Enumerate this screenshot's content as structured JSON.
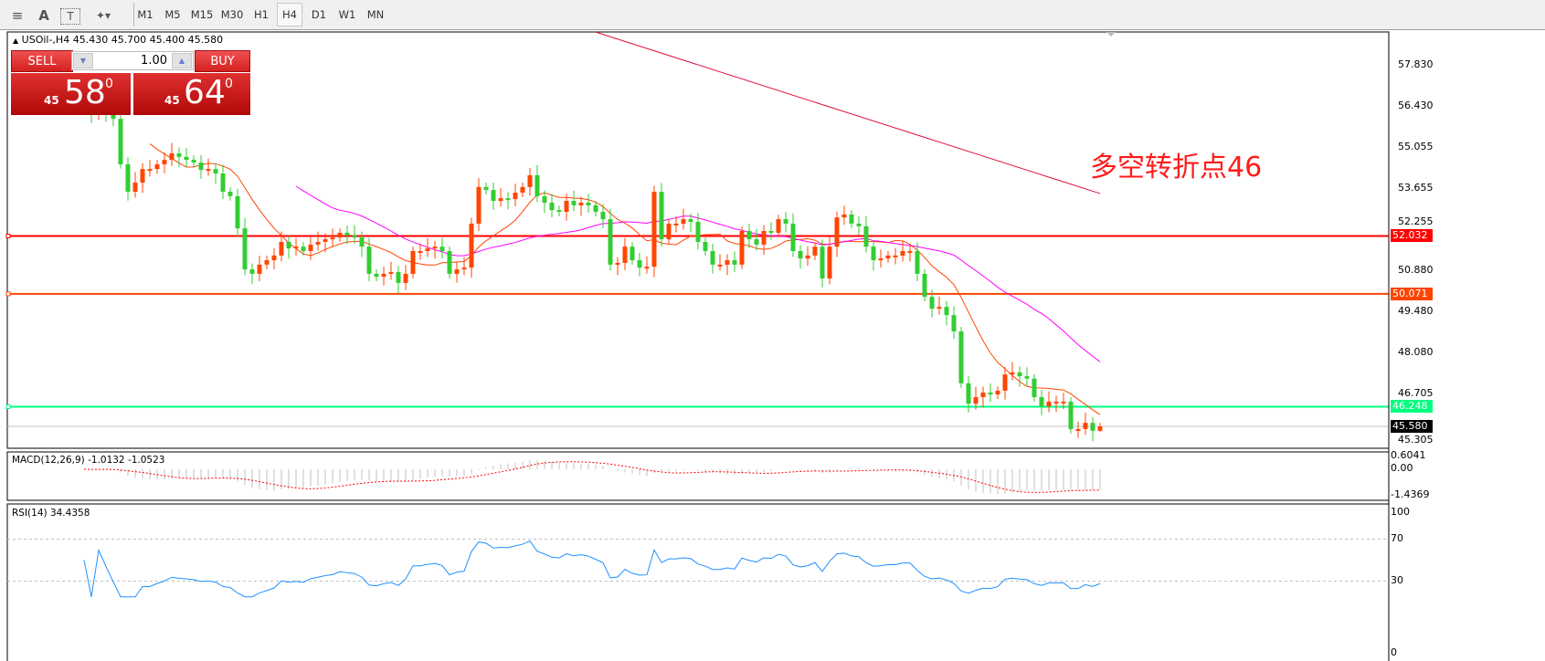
{
  "toolbar": {
    "icons": [
      "fibonacci-fan-icon",
      "text-label-icon",
      "text-box-icon",
      "arrows-dropdown-icon"
    ],
    "icon_glyphs": [
      "≡",
      "A",
      "T",
      "✦▾"
    ],
    "timeframes": [
      "M1",
      "M5",
      "M15",
      "M30",
      "H1",
      "H4",
      "D1",
      "W1",
      "MN"
    ],
    "active_timeframe": "H4"
  },
  "chart": {
    "symbol_line": "USOil-,H4",
    "ohlc_text": "45.430 45.700 45.400 45.580",
    "annotation": "多空转折点46"
  },
  "trade_panel": {
    "sell_label": "SELL",
    "buy_label": "BUY",
    "lot": "1.00",
    "sell_big": "45",
    "sell_main": "58",
    "sell_sup": "0",
    "buy_big": "45",
    "buy_main": "64",
    "buy_sup": "0"
  },
  "price_axis": [
    "57.830",
    "56.430",
    "55.055",
    "53.655",
    "52.255",
    "50.880",
    "49.480",
    "48.080",
    "46.705",
    "45.305"
  ],
  "levels": [
    {
      "value": "52.032",
      "color": "#ff0000"
    },
    {
      "value": "50.071",
      "color": "#ff4500"
    },
    {
      "value": "46.248",
      "color": "#00ff7f"
    }
  ],
  "current_price": "45.580",
  "macd": {
    "label": "MACD(12,26,9) -1.0132 -1.0523",
    "axis": [
      "0.6041",
      "0.00",
      "-1.4369"
    ]
  },
  "rsi": {
    "label": "RSI(14) 34.4358",
    "axis": [
      "100",
      "70",
      "30",
      "0"
    ]
  },
  "colors": {
    "bull": "#ff4500",
    "bear": "#32cd32",
    "ma_fast": "#ff4500",
    "ma_mid": "#ff00ff",
    "ma_slow": "#e0103a",
    "rsi": "#1e90ff",
    "macd_hist": "#c0c0c0",
    "macd_signal": "#ff0000"
  },
  "chart_data": {
    "type": "candlestick",
    "symbol": "USOil-",
    "timeframe": "H4",
    "last_bar": {
      "open": 45.43,
      "high": 45.7,
      "low": 45.4,
      "close": 45.58
    },
    "ylim": [
      45.0,
      58.9
    ],
    "closes": [
      56.31,
      56.16,
      56.38,
      56.25,
      56.0,
      54.46,
      53.53,
      53.84,
      54.3,
      54.3,
      54.46,
      54.61,
      54.83,
      54.71,
      54.61,
      54.52,
      54.27,
      54.3,
      54.15,
      53.53,
      53.38,
      52.29,
      50.9,
      50.75,
      51.06,
      51.21,
      51.37,
      51.83,
      51.61,
      51.67,
      51.52,
      51.74,
      51.83,
      51.92,
      51.98,
      52.14,
      52.05,
      51.98,
      51.67,
      50.75,
      50.65,
      50.75,
      50.81,
      50.44,
      50.75,
      51.52,
      51.52,
      51.61,
      51.67,
      51.52,
      50.75,
      50.9,
      50.96,
      52.45,
      53.69,
      53.59,
      53.22,
      53.31,
      53.28,
      53.5,
      53.69,
      54.09,
      53.38,
      53.16,
      52.91,
      52.85,
      53.22,
      53.07,
      53.16,
      53.07,
      52.85,
      52.6,
      51.06,
      51.12,
      51.67,
      51.21,
      50.96,
      50.99,
      53.53,
      51.92,
      52.45,
      52.45,
      52.6,
      52.51,
      51.83,
      51.52,
      51.06,
      51.06,
      51.21,
      51.06,
      52.2,
      51.92,
      51.74,
      52.2,
      52.14,
      52.6,
      52.45,
      51.52,
      51.27,
      51.37,
      51.67,
      50.59,
      51.67,
      52.66,
      52.76,
      52.45,
      52.36,
      51.67,
      51.21,
      51.27,
      51.37,
      51.37,
      51.52,
      51.52,
      50.75,
      49.97,
      49.57,
      49.63,
      49.35,
      48.8,
      47.04,
      46.35,
      46.57,
      46.73,
      46.66,
      46.79,
      47.34,
      47.41,
      47.28,
      47.2,
      46.57,
      46.26,
      46.42,
      46.42,
      46.42,
      45.49,
      45.49,
      45.7,
      45.43,
      45.58
    ],
    "ma_long_segment": {
      "from_bar": 70,
      "from_value": 58.94,
      "to_bar": 139,
      "to_value": 53.47
    },
    "indicators": [
      "SMA fast",
      "SMA mid",
      "MACD(12,26,9)",
      "RSI(14)"
    ],
    "rsi_levels": [
      70,
      30
    ],
    "macd_range": [
      -1.4369,
      0.6041
    ]
  }
}
